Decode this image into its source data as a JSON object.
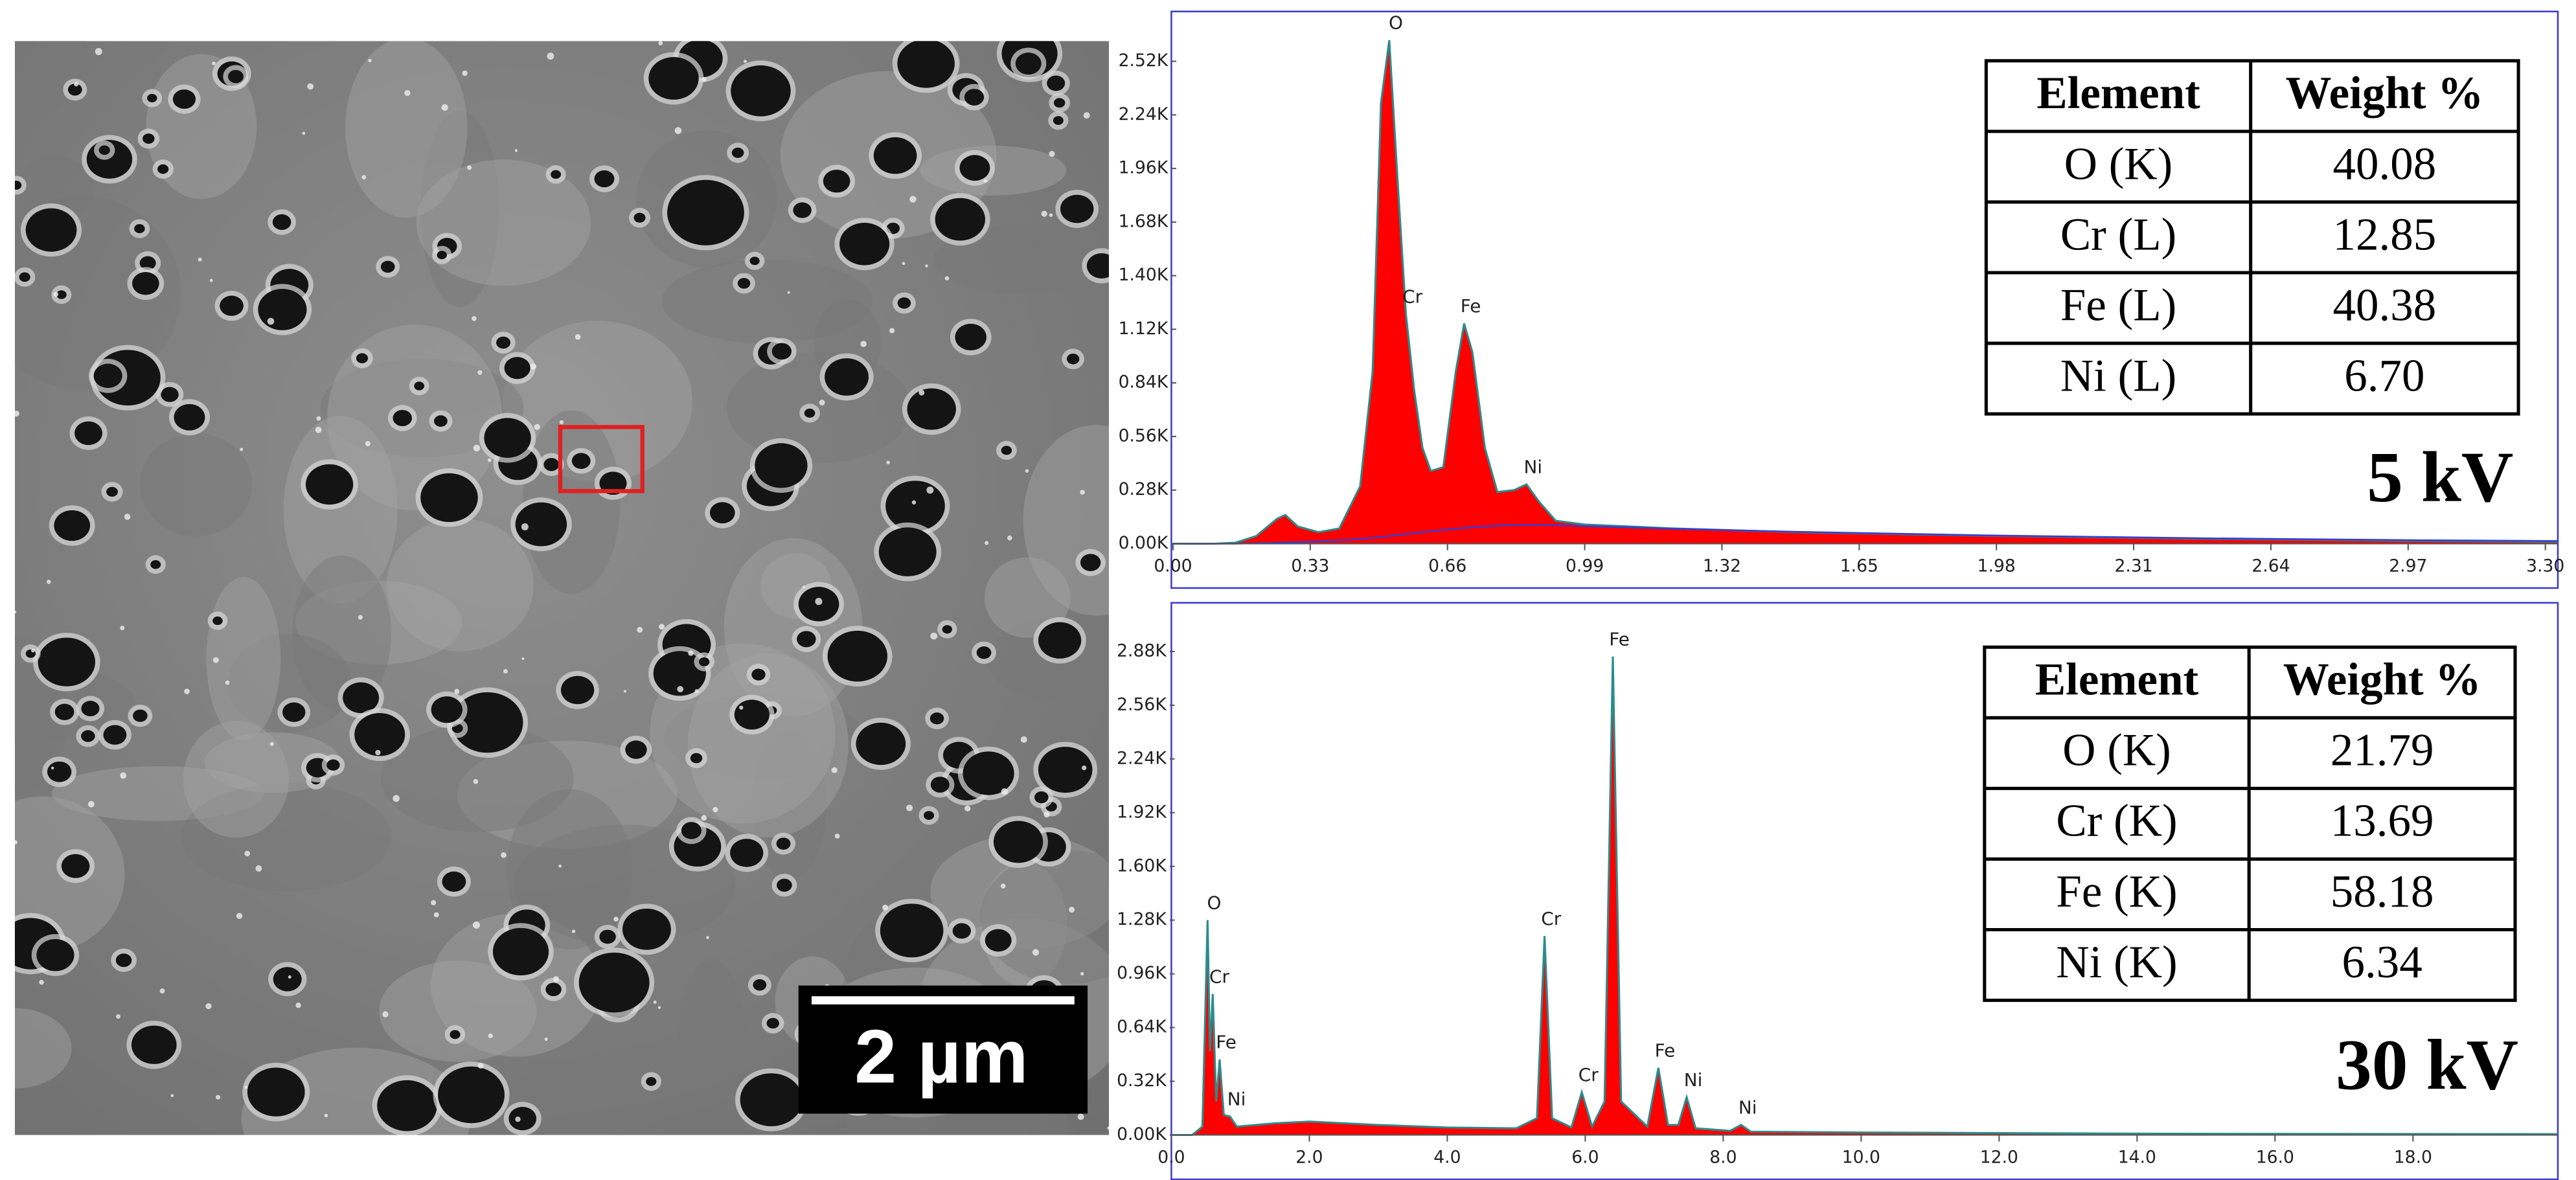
{
  "sem_image": {
    "scale_bar": "2 µm"
  },
  "chart_data": [
    {
      "type": "area",
      "label": "5 kV",
      "color": "#ff0000",
      "line_color": "#2a8c8c",
      "background_color": "#3a3ad0",
      "xlim": [
        0,
        3.33
      ],
      "xticks": [
        {
          "value": 0,
          "label": "0.00"
        },
        {
          "value": 0.33,
          "label": "0.33"
        },
        {
          "value": 0.66,
          "label": "0.66"
        },
        {
          "value": 0.99,
          "label": "0.99"
        },
        {
          "value": 1.32,
          "label": "1.32"
        },
        {
          "value": 1.65,
          "label": "1.65"
        },
        {
          "value": 1.98,
          "label": "1.98"
        },
        {
          "value": 2.31,
          "label": "2.31"
        },
        {
          "value": 2.64,
          "label": "2.64"
        },
        {
          "value": 2.97,
          "label": "2.97"
        },
        {
          "value": 3.3,
          "label": "3.30"
        }
      ],
      "ylim": [
        0,
        2780
      ],
      "yticks": [
        {
          "value": 0,
          "label": "0.00K"
        },
        {
          "value": 280,
          "label": "0.28K"
        },
        {
          "value": 560,
          "label": "0.56K"
        },
        {
          "value": 840,
          "label": "0.84K"
        },
        {
          "value": 1120,
          "label": "1.12K"
        },
        {
          "value": 1400,
          "label": "1.40K"
        },
        {
          "value": 1680,
          "label": "1.68K"
        },
        {
          "value": 1960,
          "label": "1.96K"
        },
        {
          "value": 2240,
          "label": "2.24K"
        },
        {
          "value": 2520,
          "label": "2.52K"
        }
      ],
      "x": [
        0,
        0.1,
        0.15,
        0.2,
        0.25,
        0.27,
        0.3,
        0.35,
        0.4,
        0.45,
        0.48,
        0.5,
        0.52,
        0.54,
        0.56,
        0.58,
        0.6,
        0.62,
        0.65,
        0.68,
        0.7,
        0.72,
        0.75,
        0.78,
        0.82,
        0.85,
        0.88,
        0.92,
        0.99,
        1.2,
        1.5,
        2.0,
        2.5,
        3.0,
        3.33
      ],
      "series": [
        {
          "values": [
            0,
            0,
            5,
            40,
            130,
            150,
            90,
            60,
            80,
            300,
            900,
            2300,
            2630,
            1900,
            1200,
            800,
            500,
            380,
            400,
            900,
            1150,
            1000,
            500,
            270,
            280,
            310,
            220,
            120,
            100,
            80,
            60,
            40,
            25,
            15,
            10
          ]
        },
        {
          "values": [
            0,
            0,
            0,
            2,
            5,
            6,
            8,
            12,
            18,
            25,
            30,
            35,
            40,
            45,
            50,
            55,
            60,
            65,
            72,
            78,
            82,
            86,
            90,
            94,
            97,
            98,
            98,
            96,
            92,
            78,
            62,
            42,
            28,
            18,
            14
          ]
        }
      ],
      "peak_labels": [
        {
          "label": "O",
          "x": 0.52,
          "y": 2630
        },
        {
          "label": "Cr",
          "x": 0.56,
          "y": 1200
        },
        {
          "label": "Fe",
          "x": 0.7,
          "y": 1150
        },
        {
          "label": "Ni",
          "x": 0.85,
          "y": 310
        }
      ],
      "table": {
        "header": [
          "Element",
          "Weight %"
        ],
        "rows": [
          [
            "O (K)",
            "40.08"
          ],
          [
            "Cr (L)",
            "12.85"
          ],
          [
            "Fe (L)",
            "40.38"
          ],
          [
            "Ni (L)",
            "6.70"
          ]
        ]
      }
    },
    {
      "type": "area",
      "label": "30 kV",
      "color": "#ff0000",
      "line_color": "#2a8c8c",
      "xlim": [
        0,
        20.1
      ],
      "xticks": [
        {
          "value": 0,
          "label": "0.0"
        },
        {
          "value": 2,
          "label": "2.0"
        },
        {
          "value": 4,
          "label": "4.0"
        },
        {
          "value": 6,
          "label": "6.0"
        },
        {
          "value": 8,
          "label": "8.0"
        },
        {
          "value": 10,
          "label": "10.0"
        },
        {
          "value": 12,
          "label": "12.0"
        },
        {
          "value": 14,
          "label": "14.0"
        },
        {
          "value": 16,
          "label": "16.0"
        },
        {
          "value": 18,
          "label": "18.0"
        }
      ],
      "ylim": [
        0,
        3170
      ],
      "yticks": [
        {
          "value": 0,
          "label": "0.00K"
        },
        {
          "value": 320,
          "label": "0.32K"
        },
        {
          "value": 640,
          "label": "0.64K"
        },
        {
          "value": 960,
          "label": "0.96K"
        },
        {
          "value": 1280,
          "label": "1.28K"
        },
        {
          "value": 1600,
          "label": "1.60K"
        },
        {
          "value": 1920,
          "label": "1.92K"
        },
        {
          "value": 2240,
          "label": "2.24K"
        },
        {
          "value": 2560,
          "label": "2.56K"
        },
        {
          "value": 2880,
          "label": "2.88K"
        }
      ],
      "x": [
        0,
        0.3,
        0.45,
        0.525,
        0.56,
        0.6,
        0.65,
        0.7,
        0.76,
        0.85,
        0.95,
        1.5,
        2.0,
        3.0,
        4.0,
        5.0,
        5.3,
        5.41,
        5.52,
        5.8,
        5.95,
        6.1,
        6.28,
        6.4,
        6.52,
        6.9,
        7.06,
        7.2,
        7.35,
        7.47,
        7.6,
        8.1,
        8.26,
        8.4,
        10,
        14,
        20.1
      ],
      "series": [
        {
          "values": [
            0,
            0,
            50,
            1280,
            500,
            840,
            200,
            450,
            120,
            110,
            50,
            70,
            80,
            60,
            45,
            40,
            100,
            1185,
            100,
            45,
            255,
            50,
            200,
            2850,
            200,
            50,
            400,
            60,
            60,
            225,
            40,
            25,
            60,
            20,
            15,
            8,
            5
          ]
        }
      ],
      "peak_labels": [
        {
          "label": "O",
          "x": 0.525,
          "y": 1280
        },
        {
          "label": "Cr",
          "x": 0.6,
          "y": 840
        },
        {
          "label": "Fe",
          "x": 0.7,
          "y": 450
        },
        {
          "label": "Ni",
          "x": 0.85,
          "y": 110
        },
        {
          "label": "Cr",
          "x": 5.41,
          "y": 1185
        },
        {
          "label": "Cr",
          "x": 5.95,
          "y": 255
        },
        {
          "label": "Fe",
          "x": 6.4,
          "y": 2850
        },
        {
          "label": "Fe",
          "x": 7.06,
          "y": 400
        },
        {
          "label": "Ni",
          "x": 7.47,
          "y": 225
        },
        {
          "label": "Ni",
          "x": 8.26,
          "y": 60
        }
      ],
      "table": {
        "header": [
          "Element",
          "Weight %"
        ],
        "rows": [
          [
            "O (K)",
            "21.79"
          ],
          [
            "Cr (K)",
            "13.69"
          ],
          [
            "Fe (K)",
            "58.18"
          ],
          [
            "Ni (K)",
            "6.34"
          ]
        ]
      }
    }
  ]
}
